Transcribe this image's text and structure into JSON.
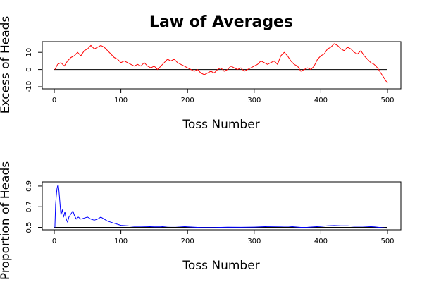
{
  "title": "Law of Averages",
  "chart_data": [
    {
      "type": "line",
      "xlabel": "Toss Number",
      "ylabel": "Excess of Heads",
      "xlim": [
        0,
        500
      ],
      "ylim": [
        -10,
        15
      ],
      "xticks": [
        0,
        100,
        200,
        300,
        400,
        500
      ],
      "yticks": [
        -10,
        0,
        10
      ],
      "reference_line": 0,
      "grid": false,
      "series": [
        {
          "color": "#ff0000",
          "points": [
            [
              1,
              0
            ],
            [
              5,
              3
            ],
            [
              10,
              4
            ],
            [
              15,
              2
            ],
            [
              20,
              5
            ],
            [
              25,
              7
            ],
            [
              30,
              8
            ],
            [
              35,
              10
            ],
            [
              40,
              8
            ],
            [
              45,
              11
            ],
            [
              50,
              12
            ],
            [
              55,
              14
            ],
            [
              60,
              12
            ],
            [
              65,
              13
            ],
            [
              70,
              14
            ],
            [
              75,
              13
            ],
            [
              80,
              11
            ],
            [
              85,
              9
            ],
            [
              90,
              7
            ],
            [
              95,
              6
            ],
            [
              100,
              4
            ],
            [
              105,
              5
            ],
            [
              110,
              4
            ],
            [
              115,
              3
            ],
            [
              120,
              2
            ],
            [
              125,
              3
            ],
            [
              130,
              2
            ],
            [
              135,
              4
            ],
            [
              140,
              2
            ],
            [
              145,
              1
            ],
            [
              150,
              2
            ],
            [
              155,
              0
            ],
            [
              160,
              2
            ],
            [
              165,
              4
            ],
            [
              170,
              6
            ],
            [
              175,
              5
            ],
            [
              180,
              6
            ],
            [
              185,
              4
            ],
            [
              190,
              3
            ],
            [
              195,
              2
            ],
            [
              200,
              1
            ],
            [
              205,
              0
            ],
            [
              210,
              -1
            ],
            [
              215,
              0
            ],
            [
              220,
              -2
            ],
            [
              225,
              -3
            ],
            [
              230,
              -2
            ],
            [
              235,
              -1
            ],
            [
              240,
              -2
            ],
            [
              245,
              0
            ],
            [
              250,
              1
            ],
            [
              255,
              -1
            ],
            [
              260,
              0
            ],
            [
              265,
              2
            ],
            [
              270,
              1
            ],
            [
              275,
              0
            ],
            [
              280,
              1
            ],
            [
              285,
              -1
            ],
            [
              290,
              0
            ],
            [
              295,
              1
            ],
            [
              300,
              2
            ],
            [
              305,
              3
            ],
            [
              310,
              5
            ],
            [
              315,
              4
            ],
            [
              320,
              3
            ],
            [
              325,
              4
            ],
            [
              330,
              5
            ],
            [
              335,
              3
            ],
            [
              340,
              8
            ],
            [
              345,
              10
            ],
            [
              350,
              8
            ],
            [
              355,
              5
            ],
            [
              360,
              3
            ],
            [
              365,
              2
            ],
            [
              370,
              -1
            ],
            [
              375,
              0
            ],
            [
              380,
              1
            ],
            [
              385,
              0
            ],
            [
              390,
              2
            ],
            [
              395,
              6
            ],
            [
              400,
              8
            ],
            [
              405,
              9
            ],
            [
              410,
              12
            ],
            [
              415,
              13
            ],
            [
              420,
              15
            ],
            [
              425,
              14
            ],
            [
              430,
              12
            ],
            [
              435,
              11
            ],
            [
              440,
              13
            ],
            [
              445,
              12
            ],
            [
              450,
              10
            ],
            [
              455,
              9
            ],
            [
              460,
              11
            ],
            [
              465,
              8
            ],
            [
              470,
              6
            ],
            [
              475,
              4
            ],
            [
              480,
              3
            ],
            [
              485,
              1
            ],
            [
              490,
              -2
            ],
            [
              495,
              -5
            ],
            [
              500,
              -8
            ]
          ]
        }
      ]
    },
    {
      "type": "line",
      "xlabel": "Toss Number",
      "ylabel": "Proportion of Heads",
      "xlim": [
        0,
        500
      ],
      "ylim": [
        0.49,
        0.92
      ],
      "xticks": [
        0,
        100,
        200,
        300,
        400,
        500
      ],
      "yticks": [
        0.5,
        0.7,
        0.9
      ],
      "reference_line": 0.5,
      "grid": false,
      "series": [
        {
          "color": "#0000ff",
          "points": [
            [
              1,
              0.5
            ],
            [
              2,
              0.72
            ],
            [
              3,
              0.8
            ],
            [
              4,
              0.87
            ],
            [
              5,
              0.9
            ],
            [
              6,
              0.91
            ],
            [
              7,
              0.86
            ],
            [
              8,
              0.78
            ],
            [
              9,
              0.7
            ],
            [
              10,
              0.62
            ],
            [
              12,
              0.67
            ],
            [
              14,
              0.6
            ],
            [
              16,
              0.65
            ],
            [
              18,
              0.58
            ],
            [
              20,
              0.55
            ],
            [
              22,
              0.6
            ],
            [
              25,
              0.63
            ],
            [
              28,
              0.66
            ],
            [
              30,
              0.62
            ],
            [
              33,
              0.58
            ],
            [
              36,
              0.6
            ],
            [
              40,
              0.58
            ],
            [
              45,
              0.59
            ],
            [
              50,
              0.6
            ],
            [
              55,
              0.58
            ],
            [
              60,
              0.57
            ],
            [
              65,
              0.58
            ],
            [
              70,
              0.6
            ],
            [
              75,
              0.58
            ],
            [
              80,
              0.56
            ],
            [
              85,
              0.55
            ],
            [
              90,
              0.54
            ],
            [
              95,
              0.53
            ],
            [
              100,
              0.52
            ],
            [
              110,
              0.515
            ],
            [
              120,
              0.51
            ],
            [
              130,
              0.51
            ],
            [
              140,
              0.508
            ],
            [
              150,
              0.506
            ],
            [
              160,
              0.506
            ],
            [
              170,
              0.512
            ],
            [
              180,
              0.514
            ],
            [
              190,
              0.51
            ],
            [
              200,
              0.505
            ],
            [
              220,
              0.498
            ],
            [
              240,
              0.499
            ],
            [
              260,
              0.502
            ],
            [
              280,
              0.501
            ],
            [
              300,
              0.503
            ],
            [
              320,
              0.508
            ],
            [
              340,
              0.51
            ],
            [
              350,
              0.511
            ],
            [
              360,
              0.506
            ],
            [
              370,
              0.5
            ],
            [
              380,
              0.501
            ],
            [
              400,
              0.51
            ],
            [
              410,
              0.515
            ],
            [
              420,
              0.518
            ],
            [
              430,
              0.516
            ],
            [
              440,
              0.515
            ],
            [
              450,
              0.511
            ],
            [
              460,
              0.512
            ],
            [
              470,
              0.509
            ],
            [
              480,
              0.505
            ],
            [
              490,
              0.498
            ],
            [
              500,
              0.492
            ]
          ]
        }
      ]
    }
  ]
}
